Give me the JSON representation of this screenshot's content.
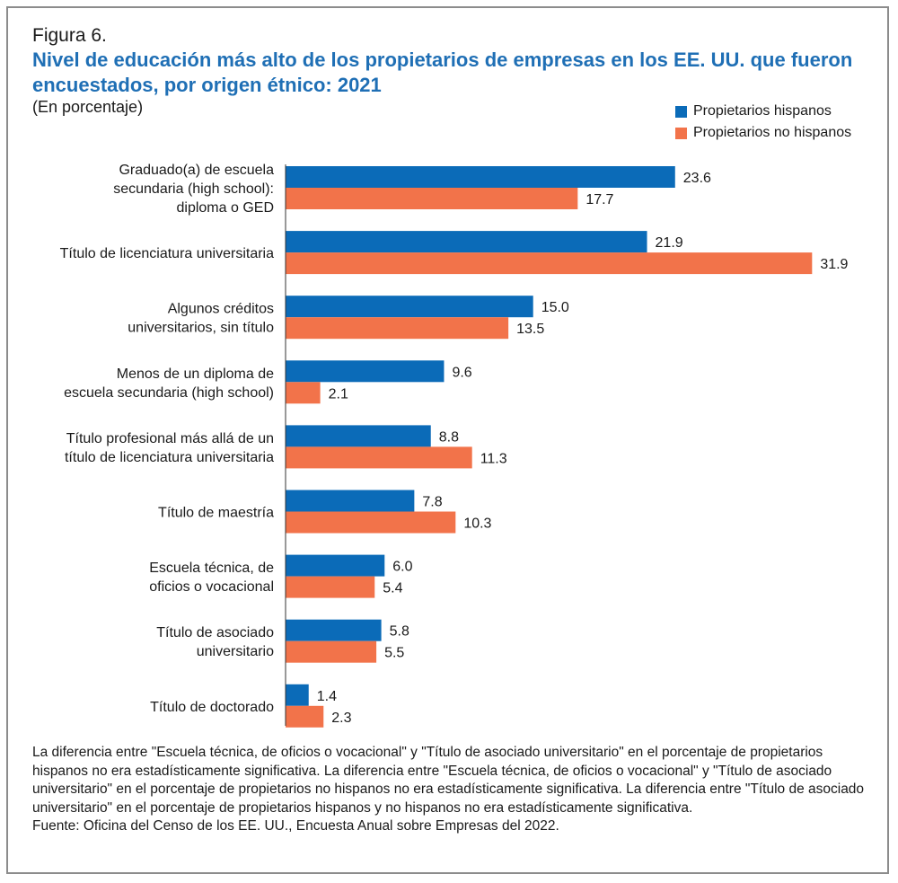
{
  "figure_label": "Figura 6.",
  "notes": "La diferencia entre \"Escuela técnica, de oficios o vocacional\" y \"Título de asociado universitario\" en el porcentaje de propietarios hispanos no era estadísticamente significativa. La diferencia entre \"Escuela técnica, de oficios o vocacional\" y \"Título de asociado universitario\" en el porcentaje de propietarios no hispanos no era estadísticamente significativa. La diferencia entre \"Título de asociado universitario\" en el porcentaje de propietarios hispanos y no hispanos no era estadísticamente significativa.",
  "source": "Fuente: Oficina del Censo de los EE. UU., Encuesta Anual sobre Empresas del 2022.",
  "colors": {
    "hispanic": "#0b6bb8",
    "non_hispanic": "#f2734a",
    "title": "#1f6fb5"
  },
  "chart_data": {
    "type": "bar",
    "orientation": "horizontal",
    "title": "Nivel de educación más alto de los propietarios de empresas en los EE. UU. que fueron encuestados, por origen étnico: 2021",
    "subtitle": "(En porcentaje)",
    "xlim": [
      0,
      35
    ],
    "grid": false,
    "legend_position": "top-right",
    "categories": [
      [
        "Graduado(a) de escuela",
        "secundaria (high school):",
        "diploma o GED"
      ],
      [
        "Título de licenciatura universitaria"
      ],
      [
        "Algunos créditos",
        "universitarios, sin título"
      ],
      [
        "Menos de un diploma de",
        "escuela secundaria (high school)"
      ],
      [
        "Título profesional más allá de un",
        "título de licenciatura universitaria"
      ],
      [
        "Título de maestría"
      ],
      [
        "Escuela técnica, de",
        "oficios o vocacional"
      ],
      [
        "Título de asociado",
        "universitario"
      ],
      [
        "Título de doctorado"
      ]
    ],
    "series": [
      {
        "name": "Propietarios hispanos",
        "values": [
          23.6,
          21.9,
          15.0,
          9.6,
          8.8,
          7.8,
          6.0,
          5.8,
          1.4
        ],
        "labels": [
          "23.6",
          "21.9",
          "15.0",
          "9.6",
          "8.8",
          "7.8",
          "6.0",
          "5.8",
          "1.4"
        ]
      },
      {
        "name": "Propietarios no hispanos",
        "values": [
          17.7,
          31.9,
          13.5,
          2.1,
          11.3,
          10.3,
          5.4,
          5.5,
          2.3
        ],
        "labels": [
          "17.7",
          "31.9",
          "13.5",
          "2.1",
          "11.3",
          "10.3",
          "5.4",
          "5.5",
          "2.3"
        ]
      }
    ]
  }
}
